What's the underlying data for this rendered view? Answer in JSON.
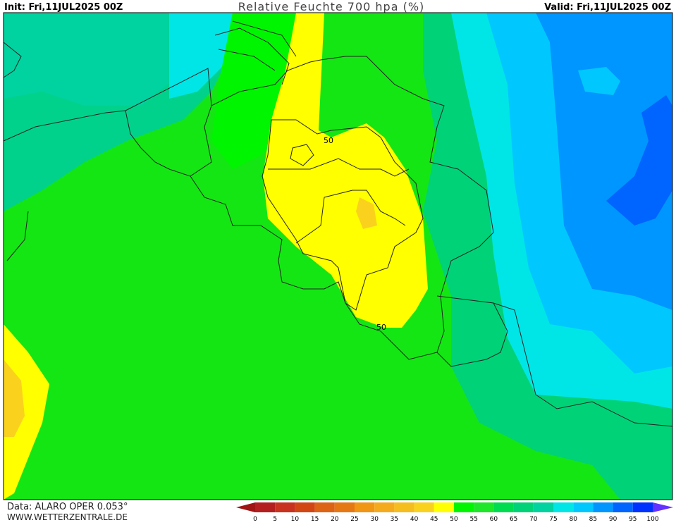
{
  "header": {
    "init": "Init: Fri,11JUL2025 00Z",
    "title": "Relative Feuchte 700 hpa (%)",
    "valid": "Valid: Fri,11JUL2025 00Z"
  },
  "map": {
    "contour_labels": [
      "50",
      "50"
    ]
  },
  "footer": {
    "source": "Data: ALARO OPER 0.053°",
    "website": "WWW.WETTERZENTRALE.DE"
  },
  "colorbar": {
    "ticks": [
      0,
      5,
      10,
      15,
      20,
      25,
      30,
      35,
      40,
      45,
      50,
      55,
      60,
      65,
      70,
      75,
      80,
      85,
      90,
      95,
      100
    ],
    "colors": [
      "#b41e1e",
      "#c8321e",
      "#d24614",
      "#dc6414",
      "#e67814",
      "#f09614",
      "#f5aa1e",
      "#f5be1e",
      "#fad21e",
      "#ffff00",
      "#00f500",
      "#1ee628",
      "#00dc50",
      "#00d278",
      "#00d2a0",
      "#00e6e6",
      "#00c8ff",
      "#0096ff",
      "#0064ff",
      "#0032ff"
    ],
    "under_color": "#a01414",
    "over_color": "#6432ff"
  }
}
